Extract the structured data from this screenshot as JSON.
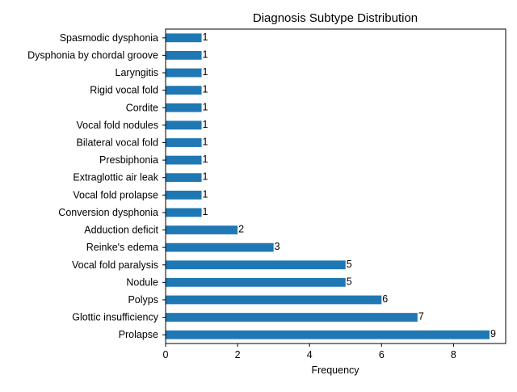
{
  "chart_data": {
    "type": "bar",
    "orientation": "horizontal",
    "title": "Diagnosis Subtype Distribution",
    "xlabel": "Frequency",
    "ylabel": "",
    "xlim": [
      0,
      9.45
    ],
    "xticks": [
      0,
      2,
      4,
      6,
      8
    ],
    "grid": false,
    "legend": "none",
    "bar_color": "#1f77b4",
    "categories": [
      "Prolapse",
      "Glottic insufficiency",
      "Polyps",
      "Nodule",
      "Vocal fold paralysis",
      "Reinke's edema",
      "Adduction deficit",
      "Conversion dysphonia",
      "Vocal fold prolapse",
      "Extraglottic air leak",
      "Presbiphonia",
      "Bilateral vocal fold",
      "Vocal fold nodules",
      "Cordite",
      "Rigid vocal fold",
      "Laryngitis",
      "Dysphonia by chordal groove",
      "Spasmodic dysphonia"
    ],
    "values": [
      9,
      7,
      6,
      5,
      5,
      3,
      2,
      1,
      1,
      1,
      1,
      1,
      1,
      1,
      1,
      1,
      1,
      1
    ]
  }
}
